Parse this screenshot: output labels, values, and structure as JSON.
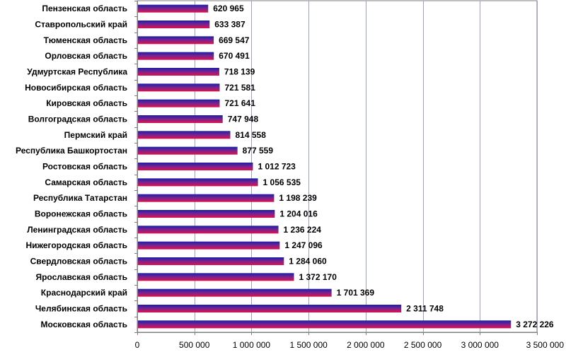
{
  "chart_data": {
    "type": "bar",
    "orientation": "horizontal",
    "categories": [
      "Пензенская область",
      "Ставропольский край",
      "Тюменская область",
      "Орловская область",
      "Удмуртская Республика",
      "Новосибирская область",
      "Кировская область",
      "Волгоградская область",
      "Пермский край",
      "Республика Башкортостан",
      "Ростовская область",
      "Самарская область",
      "Республика Татарстан",
      "Воронежская область",
      "Ленинградская область",
      "Нижегородская область",
      "Свердловская область",
      "Ярославская область",
      "Краснодарский край",
      "Челябинская область",
      "Московская область"
    ],
    "values": [
      620965,
      633387,
      669547,
      670491,
      718139,
      721581,
      721641,
      747948,
      814558,
      877559,
      1012723,
      1056535,
      1198239,
      1204016,
      1236224,
      1247096,
      1284060,
      1372170,
      1701369,
      2311748,
      3272226
    ],
    "value_labels": [
      "620 965",
      "633 387",
      "669 547",
      "670 491",
      "718 139",
      "721 581",
      "721 641",
      "747 948",
      "814 558",
      "877 559",
      "1 012 723",
      "1 056 535",
      "1 198 239",
      "1 204 016",
      "1 236 224",
      "1 247 096",
      "1 284 060",
      "1 372 170",
      "1 701 369",
      "2 311 748",
      "3 272 226"
    ],
    "xlim": [
      0,
      3500000
    ],
    "x_ticks": [
      0,
      500000,
      1000000,
      1500000,
      2000000,
      2500000,
      3000000,
      3500000
    ],
    "x_tick_labels": [
      "0",
      "500 000",
      "1 000 000",
      "1 500 000",
      "2 000 000",
      "2 500 000",
      "3 000 000",
      "3 500 000"
    ],
    "grid": "vertical",
    "legend": "none",
    "title": "",
    "xlabel": "",
    "ylabel": "",
    "colors": {
      "bar_top": "#1b1fa8",
      "bar_mid": "#7a2390",
      "bar_bottom": "#e0104a",
      "plot_background": "#ffffff",
      "gridline": "#9aa4b8",
      "axis": "#808080"
    }
  }
}
